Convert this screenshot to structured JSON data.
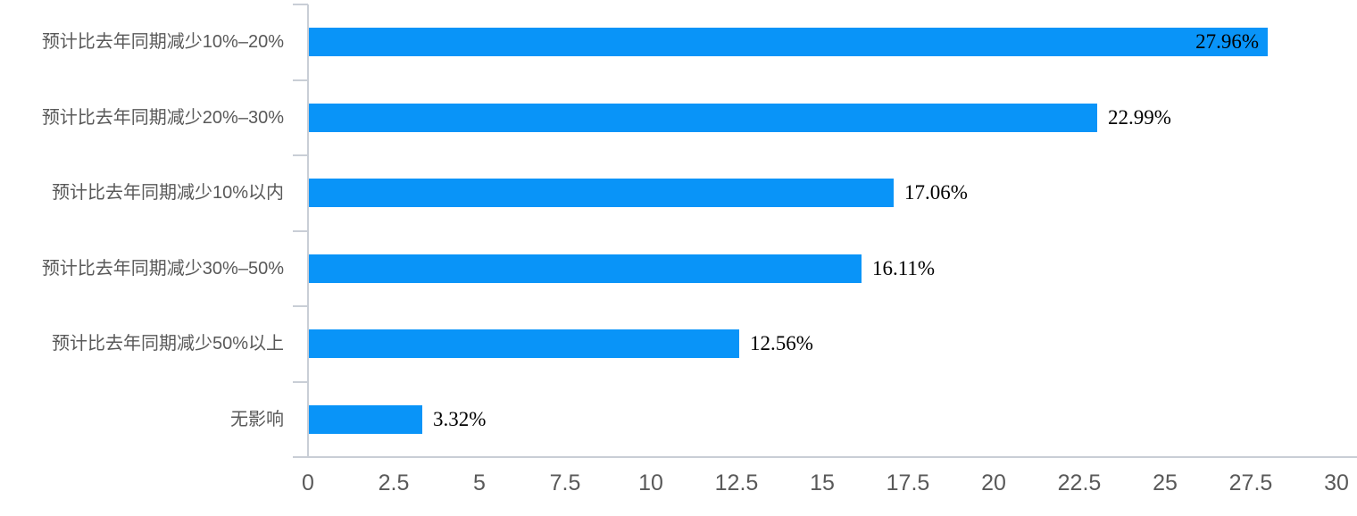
{
  "chart_data": {
    "type": "bar",
    "orientation": "horizontal",
    "title": "",
    "xlabel": "",
    "ylabel": "",
    "xlim": [
      0,
      30
    ],
    "grid": false,
    "legend": null,
    "categories": [
      "预计比去年同期减少10%–20%",
      "预计比去年同期减少20%–30%",
      "预计比去年同期减少10%以内",
      "预计比去年同期减少30%–50%",
      "预计比去年同期减少50%以上",
      "无影响"
    ],
    "values": [
      27.96,
      22.99,
      17.06,
      16.11,
      12.56,
      3.32
    ],
    "value_labels": [
      "27.96%",
      "22.99%",
      "17.06%",
      "16.11%",
      "12.56%",
      "3.32%"
    ],
    "value_label_placement": [
      "inside",
      "outside",
      "outside",
      "outside",
      "outside",
      "outside"
    ],
    "x_tick_labels": [
      "0",
      "2.5",
      "5",
      "7.5",
      "10",
      "12.5",
      "15",
      "17.5",
      "20",
      "22.5",
      "25",
      "27.5",
      "30"
    ],
    "x_tick_values": [
      0,
      2.5,
      5,
      7.5,
      10,
      12.5,
      15,
      17.5,
      20,
      22.5,
      25,
      27.5,
      30
    ],
    "colors": {
      "bar": "#0994f8",
      "axis_line": "#c9ced6",
      "category_text": "#595959",
      "tick_text": "#595959",
      "value_text": "#000000",
      "background": "#ffffff"
    }
  }
}
